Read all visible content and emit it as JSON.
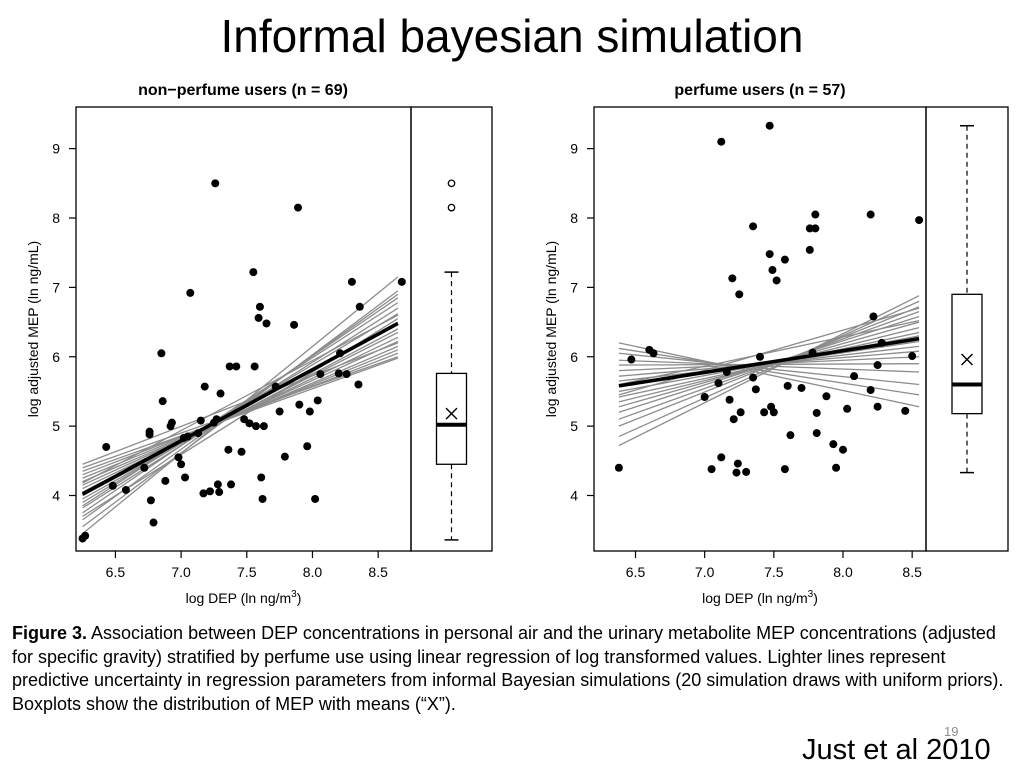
{
  "slide": {
    "title": "Informal bayesian simulation",
    "caption_bold": "Figure 3.",
    "caption_text": " Association between DEP concentrations in personal air and the urinary metabolite MEP concentrations (adjusted for specific gravity) stratified by perfume use using linear regression of log transformed values. Lighter lines represent predictive uncertainty in regression parameters from informal Bayesian simulations (20 simulation draws with uniform priors). Boxplots show the distribution of MEP with means (“X”).",
    "slide_number": "19",
    "citation": "Just et al 2010"
  },
  "colors": {
    "points": "#000000",
    "sim_lines": "#8c8c8c",
    "fit_line": "#000000"
  },
  "chart_data": [
    {
      "type": "scatter",
      "title": "non−perfume users (n = 69)",
      "xlabel": "log DEP (ln ng/m",
      "xlabel_sup": "3",
      "xlabel_end": ")",
      "ylabel": "log adjusted MEP (ln ng/mL)",
      "xlim": [
        6.2,
        8.75
      ],
      "ylim": [
        3.2,
        9.6
      ],
      "xticks": [
        6.5,
        7.0,
        7.5,
        8.0,
        8.5
      ],
      "xticklabels": [
        "6.5",
        "7.0",
        "7.5",
        "8.0",
        "8.5"
      ],
      "yticks": [
        4,
        5,
        6,
        7,
        8,
        9
      ],
      "yticklabels": [
        "4",
        "5",
        "6",
        "7",
        "8",
        "9"
      ],
      "points": [
        [
          6.25,
          3.38
        ],
        [
          6.27,
          3.42
        ],
        [
          6.43,
          4.7
        ],
        [
          6.48,
          4.14
        ],
        [
          6.58,
          4.08
        ],
        [
          6.72,
          4.4
        ],
        [
          6.76,
          4.92
        ],
        [
          6.76,
          4.88
        ],
        [
          6.77,
          3.93
        ],
        [
          6.79,
          3.61
        ],
        [
          6.85,
          6.05
        ],
        [
          6.86,
          5.36
        ],
        [
          6.88,
          4.21
        ],
        [
          6.92,
          5.0
        ],
        [
          6.93,
          5.05
        ],
        [
          6.98,
          4.55
        ],
        [
          7.0,
          4.45
        ],
        [
          7.02,
          4.83
        ],
        [
          7.03,
          4.26
        ],
        [
          7.05,
          4.85
        ],
        [
          7.07,
          6.92
        ],
        [
          7.13,
          4.9
        ],
        [
          7.15,
          5.08
        ],
        [
          7.17,
          4.03
        ],
        [
          7.18,
          5.57
        ],
        [
          7.22,
          4.06
        ],
        [
          7.25,
          5.05
        ],
        [
          7.26,
          8.5
        ],
        [
          7.27,
          5.1
        ],
        [
          7.28,
          4.16
        ],
        [
          7.29,
          4.05
        ],
        [
          7.3,
          5.47
        ],
        [
          7.36,
          4.66
        ],
        [
          7.37,
          5.86
        ],
        [
          7.38,
          4.16
        ],
        [
          7.42,
          5.86
        ],
        [
          7.46,
          4.63
        ],
        [
          7.48,
          5.1
        ],
        [
          7.52,
          5.04
        ],
        [
          7.55,
          7.22
        ],
        [
          7.56,
          5.86
        ],
        [
          7.57,
          5.0
        ],
        [
          7.59,
          6.56
        ],
        [
          7.6,
          6.72
        ],
        [
          7.61,
          4.26
        ],
        [
          7.62,
          3.95
        ],
        [
          7.63,
          5.0
        ],
        [
          7.65,
          6.48
        ],
        [
          7.72,
          5.57
        ],
        [
          7.75,
          5.21
        ],
        [
          7.79,
          4.56
        ],
        [
          7.86,
          6.46
        ],
        [
          7.89,
          8.15
        ],
        [
          7.9,
          5.31
        ],
        [
          7.96,
          4.71
        ],
        [
          7.98,
          5.21
        ],
        [
          8.02,
          3.95
        ],
        [
          8.04,
          5.37
        ],
        [
          8.06,
          5.75
        ],
        [
          8.2,
          5.76
        ],
        [
          8.21,
          6.05
        ],
        [
          8.26,
          5.75
        ],
        [
          8.3,
          7.08
        ],
        [
          8.35,
          5.6
        ],
        [
          8.36,
          6.72
        ],
        [
          8.68,
          7.08
        ]
      ],
      "fit_line": {
        "x": [
          6.25,
          8.65
        ],
        "y": [
          4.02,
          6.48
        ]
      },
      "sim_lines": [
        {
          "x": [
            6.25,
            8.65
          ],
          "y": [
            3.45,
            7.15
          ]
        },
        {
          "x": [
            6.25,
            8.65
          ],
          "y": [
            3.55,
            6.95
          ]
        },
        {
          "x": [
            6.25,
            8.65
          ],
          "y": [
            3.65,
            6.9
          ]
        },
        {
          "x": [
            6.25,
            8.65
          ],
          "y": [
            3.75,
            6.85
          ]
        },
        {
          "x": [
            6.25,
            8.65
          ],
          "y": [
            3.82,
            6.7
          ]
        },
        {
          "x": [
            6.25,
            8.65
          ],
          "y": [
            3.9,
            6.62
          ]
        },
        {
          "x": [
            6.25,
            8.65
          ],
          "y": [
            3.95,
            6.5
          ]
        },
        {
          "x": [
            6.25,
            8.65
          ],
          "y": [
            4.0,
            6.4
          ]
        },
        {
          "x": [
            6.25,
            8.65
          ],
          "y": [
            4.05,
            6.35
          ]
        },
        {
          "x": [
            6.25,
            8.65
          ],
          "y": [
            4.1,
            6.28
          ]
        },
        {
          "x": [
            6.25,
            8.65
          ],
          "y": [
            4.15,
            6.22
          ]
        },
        {
          "x": [
            6.25,
            8.65
          ],
          "y": [
            4.2,
            6.15
          ]
        },
        {
          "x": [
            6.25,
            8.65
          ],
          "y": [
            4.25,
            6.1
          ]
        },
        {
          "x": [
            6.25,
            8.65
          ],
          "y": [
            4.3,
            6.05
          ]
        },
        {
          "x": [
            6.25,
            8.65
          ],
          "y": [
            4.35,
            5.98
          ]
        },
        {
          "x": [
            6.25,
            8.65
          ],
          "y": [
            4.4,
            6.0
          ]
        },
        {
          "x": [
            6.25,
            8.65
          ],
          "y": [
            4.45,
            6.2
          ]
        },
        {
          "x": [
            6.25,
            8.65
          ],
          "y": [
            3.7,
            6.55
          ]
        },
        {
          "x": [
            6.25,
            8.65
          ],
          "y": [
            3.85,
            6.78
          ]
        },
        {
          "x": [
            6.25,
            8.65
          ],
          "y": [
            4.18,
            6.6
          ]
        }
      ],
      "boxplot": {
        "min": 3.36,
        "q1": 4.45,
        "median": 5.02,
        "q3": 5.76,
        "max": 7.22,
        "mean": 5.18,
        "outliers": [
          8.15,
          8.5
        ]
      }
    },
    {
      "type": "scatter",
      "title": "perfume users (n = 57)",
      "xlabel": "log DEP (ln ng/m",
      "xlabel_sup": "3",
      "xlabel_end": ")",
      "ylabel": "log adjusted MEP (ln ng/mL)",
      "xlim": [
        6.2,
        8.6
      ],
      "ylim": [
        3.2,
        9.6
      ],
      "xticks": [
        6.5,
        7.0,
        7.5,
        8.0,
        8.5
      ],
      "xticklabels": [
        "6.5",
        "7.0",
        "7.5",
        "8.0",
        "8.5"
      ],
      "yticks": [
        4,
        5,
        6,
        7,
        8,
        9
      ],
      "yticklabels": [
        "4",
        "5",
        "6",
        "7",
        "8",
        "9"
      ],
      "points": [
        [
          6.38,
          4.4
        ],
        [
          6.47,
          5.96
        ],
        [
          6.6,
          6.1
        ],
        [
          6.63,
          6.05
        ],
        [
          7.0,
          5.42
        ],
        [
          7.05,
          4.38
        ],
        [
          7.1,
          5.62
        ],
        [
          7.12,
          4.55
        ],
        [
          7.12,
          9.1
        ],
        [
          7.16,
          5.78
        ],
        [
          7.18,
          5.38
        ],
        [
          7.2,
          7.13
        ],
        [
          7.21,
          5.1
        ],
        [
          7.23,
          4.33
        ],
        [
          7.24,
          4.46
        ],
        [
          7.25,
          6.9
        ],
        [
          7.26,
          5.2
        ],
        [
          7.3,
          4.34
        ],
        [
          7.35,
          5.7
        ],
        [
          7.35,
          7.88
        ],
        [
          7.37,
          5.53
        ],
        [
          7.4,
          6.0
        ],
        [
          7.43,
          5.2
        ],
        [
          7.47,
          9.33
        ],
        [
          7.47,
          7.48
        ],
        [
          7.48,
          5.28
        ],
        [
          7.49,
          7.25
        ],
        [
          7.5,
          5.2
        ],
        [
          7.52,
          7.1
        ],
        [
          7.58,
          4.38
        ],
        [
          7.58,
          7.4
        ],
        [
          7.6,
          5.58
        ],
        [
          7.62,
          4.87
        ],
        [
          7.7,
          5.55
        ],
        [
          7.76,
          7.54
        ],
        [
          7.76,
          7.85
        ],
        [
          7.78,
          6.06
        ],
        [
          7.8,
          7.85
        ],
        [
          7.8,
          8.05
        ],
        [
          7.81,
          5.19
        ],
        [
          7.81,
          4.9
        ],
        [
          7.88,
          5.43
        ],
        [
          7.93,
          4.74
        ],
        [
          7.95,
          4.4
        ],
        [
          8.0,
          4.66
        ],
        [
          8.03,
          5.25
        ],
        [
          8.08,
          5.72
        ],
        [
          8.2,
          8.05
        ],
        [
          8.2,
          5.52
        ],
        [
          8.22,
          6.58
        ],
        [
          8.25,
          5.28
        ],
        [
          8.25,
          5.88
        ],
        [
          8.28,
          6.2
        ],
        [
          8.45,
          5.22
        ],
        [
          8.5,
          6.01
        ],
        [
          8.55,
          7.97
        ]
      ],
      "fit_line": {
        "x": [
          6.38,
          8.55
        ],
        "y": [
          5.58,
          6.26
        ]
      },
      "sim_lines": [
        {
          "x": [
            6.38,
            8.55
          ],
          "y": [
            4.72,
            6.88
          ]
        },
        {
          "x": [
            6.38,
            8.55
          ],
          "y": [
            4.85,
            6.8
          ]
        },
        {
          "x": [
            6.38,
            8.55
          ],
          "y": [
            5.0,
            6.72
          ]
        },
        {
          "x": [
            6.38,
            8.55
          ],
          "y": [
            5.1,
            6.65
          ]
        },
        {
          "x": [
            6.38,
            8.55
          ],
          "y": [
            5.2,
            6.58
          ]
        },
        {
          "x": [
            6.38,
            8.55
          ],
          "y": [
            5.28,
            6.5
          ]
        },
        {
          "x": [
            6.38,
            8.55
          ],
          "y": [
            5.35,
            6.42
          ]
        },
        {
          "x": [
            6.38,
            8.55
          ],
          "y": [
            5.42,
            6.35
          ]
        },
        {
          "x": [
            6.38,
            8.55
          ],
          "y": [
            5.5,
            6.3
          ]
        },
        {
          "x": [
            6.38,
            8.55
          ],
          "y": [
            5.58,
            6.22
          ]
        },
        {
          "x": [
            6.38,
            8.55
          ],
          "y": [
            5.65,
            6.15
          ]
        },
        {
          "x": [
            6.38,
            8.55
          ],
          "y": [
            5.72,
            6.08
          ]
        },
        {
          "x": [
            6.38,
            8.55
          ],
          "y": [
            5.8,
            6.0
          ]
        },
        {
          "x": [
            6.38,
            8.55
          ],
          "y": [
            5.88,
            5.9
          ]
        },
        {
          "x": [
            6.38,
            8.55
          ],
          "y": [
            5.95,
            5.78
          ]
        },
        {
          "x": [
            6.38,
            8.55
          ],
          "y": [
            6.05,
            5.6
          ]
        },
        {
          "x": [
            6.38,
            8.55
          ],
          "y": [
            6.12,
            5.45
          ]
        },
        {
          "x": [
            6.38,
            8.55
          ],
          "y": [
            6.2,
            5.28
          ]
        },
        {
          "x": [
            6.38,
            8.55
          ],
          "y": [
            5.6,
            6.52
          ]
        },
        {
          "x": [
            6.38,
            8.55
          ],
          "y": [
            5.45,
            6.7
          ]
        }
      ],
      "boxplot": {
        "min": 4.33,
        "q1": 5.18,
        "median": 5.6,
        "q3": 6.9,
        "max": 9.33,
        "mean": 5.96,
        "outliers": []
      }
    }
  ]
}
